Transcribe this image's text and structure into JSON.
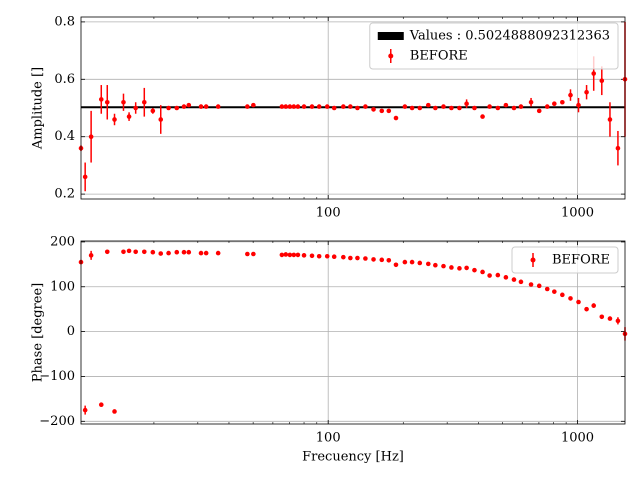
{
  "chart_data": [
    {
      "type": "errorbar",
      "ylabel": "Amplitude []",
      "xscale": "log",
      "grid": true,
      "legend": "upper right",
      "xlim": [
        10.2,
        1550
      ],
      "xticks": [
        100,
        1000
      ],
      "xminorticks": [
        20,
        30,
        40,
        50,
        60,
        70,
        80,
        90,
        200,
        300,
        400,
        500,
        600,
        700,
        800,
        900
      ],
      "ylim": [
        0.183,
        0.817
      ],
      "yticks": [
        0.2,
        0.4,
        0.6,
        0.8
      ],
      "hline": {
        "name": "Values : 0.5024888092312363",
        "value": 0.5024888092312363,
        "color": "#000000"
      },
      "x": [
        10.2,
        10.6,
        11.2,
        12.3,
        13.0,
        13.9,
        15.1,
        15.9,
        16.9,
        18.3,
        19.8,
        21.3,
        22.9,
        24.7,
        26.4,
        27.6,
        30.9,
        32.4,
        36.2,
        47.4,
        50.1,
        65.2,
        67.6,
        70.2,
        72.8,
        75.6,
        80.0,
        86.1,
        92.0,
        99.1,
        105.7,
        115,
        122.7,
        131,
        141,
        152,
        164,
        175,
        187,
        203,
        217,
        233,
        252,
        269,
        290,
        312,
        336,
        359,
        386,
        416,
        444,
        479,
        516,
        556,
        593,
        651,
        702,
        756,
        807,
        869,
        937,
        1009,
        1087,
        1161,
        1251,
        1349,
        1452,
        1550
      ],
      "series": [
        {
          "name": "BEFORE",
          "color": "#ff0000",
          "values": [
            0.36,
            0.26,
            0.4,
            0.53,
            0.52,
            0.46,
            0.52,
            0.47,
            0.5,
            0.52,
            0.49,
            0.46,
            0.5,
            0.5,
            0.505,
            0.51,
            0.505,
            0.505,
            0.505,
            0.505,
            0.51,
            0.505,
            0.505,
            0.505,
            0.505,
            0.505,
            0.505,
            0.505,
            0.505,
            0.505,
            0.5,
            0.505,
            0.505,
            0.5,
            0.505,
            0.495,
            0.49,
            0.49,
            0.465,
            0.505,
            0.5,
            0.5,
            0.51,
            0.5,
            0.505,
            0.5,
            0.5,
            0.515,
            0.5,
            0.47,
            0.505,
            0.5,
            0.51,
            0.5,
            0.505,
            0.52,
            0.49,
            0.505,
            0.515,
            0.52,
            0.545,
            0.51,
            0.555,
            0.62,
            0.595,
            0.46,
            0.36,
            0.6
          ],
          "errors": [
            0.01,
            0.05,
            0.09,
            0.05,
            0.06,
            0.02,
            0.03,
            0.015,
            0.02,
            0.05,
            0.01,
            0.05,
            0.005,
            0.005,
            0.005,
            0.005,
            0.005,
            0.005,
            0.005,
            0.005,
            0.005,
            0.005,
            0.005,
            0.005,
            0.005,
            0.005,
            0.005,
            0.005,
            0.005,
            0.005,
            0.005,
            0.005,
            0.005,
            0.005,
            0.005,
            0.005,
            0.005,
            0.005,
            0.005,
            0.005,
            0.005,
            0.005,
            0.005,
            0.005,
            0.005,
            0.005,
            0.005,
            0.015,
            0.005,
            0.005,
            0.005,
            0.005,
            0.005,
            0.005,
            0.005,
            0.015,
            0.005,
            0.005,
            0.005,
            0.005,
            0.02,
            0.025,
            0.025,
            0.06,
            0.05,
            0.06,
            0.06,
            0.2
          ]
        }
      ]
    },
    {
      "type": "errorbar",
      "ylabel": "Phase [degree]",
      "xlabel": "Frecuency [Hz]",
      "xscale": "log",
      "grid": true,
      "legend": "upper right",
      "xlim": [
        10.2,
        1550
      ],
      "xticks": [
        100,
        1000
      ],
      "xminorticks": [
        20,
        30,
        40,
        50,
        60,
        70,
        80,
        90,
        200,
        300,
        400,
        500,
        600,
        700,
        800,
        900
      ],
      "ylim": [
        -206,
        202
      ],
      "yticks": [
        {
          "value": -200,
          "label": "−200"
        },
        {
          "value": -100,
          "label": "−100"
        },
        0,
        100,
        200
      ],
      "x": [
        10.2,
        10.6,
        11.2,
        12.3,
        13.0,
        13.9,
        15.1,
        15.9,
        16.9,
        18.3,
        19.8,
        21.3,
        22.9,
        24.7,
        26.4,
        27.6,
        30.9,
        32.4,
        36.2,
        47.4,
        50.1,
        65.2,
        67.6,
        70.2,
        72.8,
        75.6,
        80.0,
        86.1,
        92.0,
        99.1,
        105.7,
        115,
        122.7,
        131,
        141,
        152,
        164,
        175,
        187,
        203,
        217,
        233,
        252,
        269,
        290,
        312,
        336,
        359,
        386,
        416,
        444,
        479,
        516,
        556,
        593,
        651,
        702,
        756,
        807,
        869,
        937,
        1009,
        1087,
        1161,
        1251,
        1349,
        1452,
        1550
      ],
      "series": [
        {
          "name": "BEFORE",
          "color": "#ff0000",
          "values": [
            155,
            -175,
            170,
            -163,
            178,
            -178,
            178,
            180,
            178,
            178,
            177,
            174,
            175,
            177,
            177,
            177,
            175,
            175,
            175,
            173,
            173,
            171,
            172,
            171,
            171,
            171,
            170,
            169,
            168,
            168,
            167,
            166,
            164,
            164,
            163,
            161,
            160,
            159,
            149,
            155,
            155,
            153,
            151,
            148,
            146,
            143,
            141,
            142,
            137,
            133,
            125,
            126,
            121,
            116,
            111,
            105,
            102,
            95,
            89,
            82,
            74,
            66,
            50,
            58,
            33,
            29,
            24,
            -5
          ],
          "errors": [
            2,
            10,
            10,
            4,
            4,
            2,
            2,
            2,
            2,
            2,
            2,
            2,
            2,
            2,
            2,
            2,
            2,
            2,
            2,
            2,
            2,
            2,
            2,
            2,
            2,
            2,
            2,
            2,
            2,
            2,
            2,
            2,
            2,
            2,
            2,
            2,
            2,
            2,
            2,
            2,
            2,
            2,
            2,
            2,
            2,
            2,
            2,
            2,
            2,
            2,
            2,
            2,
            2,
            2,
            2,
            2,
            2,
            2,
            2,
            2,
            2,
            2,
            2,
            5,
            2,
            2,
            8,
            15
          ]
        }
      ]
    }
  ]
}
